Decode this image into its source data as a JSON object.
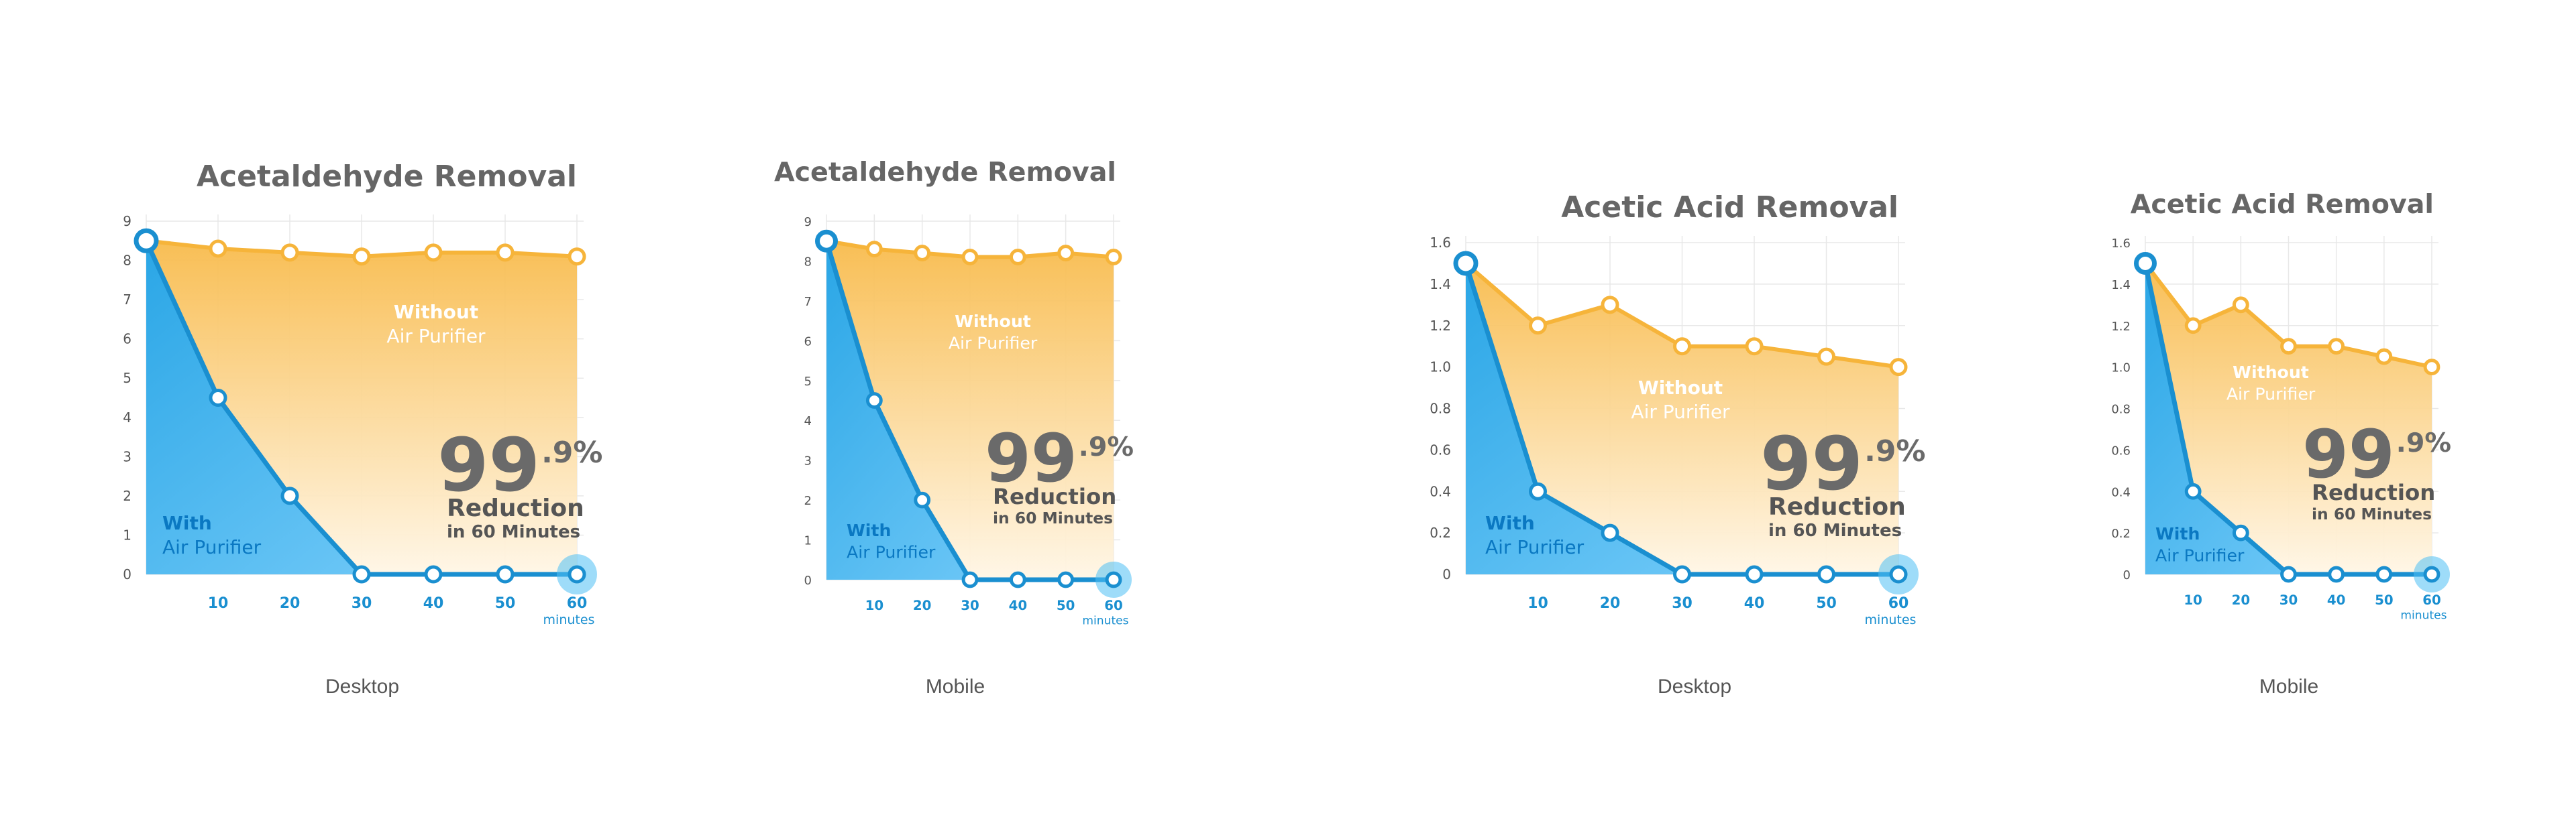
{
  "colors": {
    "with_line": "#1a8fd0",
    "with_fill_top": "#2aa6e6",
    "with_fill_bottom": "#7fd0fb",
    "without_line": "#f6b43a",
    "without_fill_top": "#f8bb4c",
    "without_fill_bottom": "#fff6e6",
    "grid": "#e8e8e8"
  },
  "chart_data": [
    {
      "type": "area",
      "title": "Acetaldehyde Removal",
      "x": [
        0,
        10,
        20,
        30,
        40,
        50,
        60
      ],
      "x_tick_labels": [
        "10",
        "20",
        "30",
        "40",
        "50",
        "60"
      ],
      "x_unit": "minutes",
      "ylim": [
        0,
        9
      ],
      "y_ticks": [
        "0",
        "1",
        "2",
        "3",
        "4",
        "5",
        "6",
        "7",
        "8",
        "9"
      ],
      "grid": true,
      "series": [
        {
          "label_bold": "Without",
          "label_regular": "Air Purifier",
          "values": [
            8.5,
            8.3,
            8.2,
            8.1,
            8.2,
            8.2,
            8.1
          ]
        },
        {
          "label_bold": "With",
          "label_regular": "Air Purifier",
          "values": [
            8.5,
            4.5,
            2.0,
            0,
            0,
            0,
            0
          ]
        }
      ],
      "stat": {
        "value": "99",
        "suffix": ".9%",
        "line1": "Reduction",
        "line2": "in 60 Minutes"
      },
      "caption": "Desktop"
    },
    {
      "type": "area",
      "title": "Acetaldehyde Removal",
      "x": [
        0,
        10,
        20,
        30,
        40,
        50,
        60
      ],
      "x_tick_labels": [
        "10",
        "20",
        "30",
        "40",
        "50",
        "60"
      ],
      "x_unit": "minutes",
      "ylim": [
        0,
        9
      ],
      "y_ticks": [
        "0",
        "1",
        "2",
        "3",
        "4",
        "5",
        "6",
        "7",
        "8",
        "9"
      ],
      "grid": true,
      "series": [
        {
          "label_bold": "Without",
          "label_regular": "Air Purifier",
          "values": [
            8.5,
            8.3,
            8.2,
            8.1,
            8.1,
            8.2,
            8.1
          ]
        },
        {
          "label_bold": "With",
          "label_regular": "Air Purifier",
          "values": [
            8.5,
            4.5,
            2.0,
            0,
            0,
            0,
            0
          ]
        }
      ],
      "stat": {
        "value": "99",
        "suffix": ".9%",
        "line1": "Reduction",
        "line2": "in 60 Minutes"
      },
      "caption": "Mobile"
    },
    {
      "type": "area",
      "title": "Acetic Acid Removal",
      "x": [
        0,
        10,
        20,
        30,
        40,
        50,
        60
      ],
      "x_tick_labels": [
        "10",
        "20",
        "30",
        "40",
        "50",
        "60"
      ],
      "x_unit": "minutes",
      "ylim": [
        0,
        1.6
      ],
      "y_ticks": [
        "0",
        "0.2",
        "0.4",
        "0.6",
        "0.8",
        "1.0",
        "1.2",
        "1.4",
        "1.6"
      ],
      "grid": true,
      "series": [
        {
          "label_bold": "Without",
          "label_regular": "Air Purifier",
          "values": [
            1.5,
            1.2,
            1.3,
            1.1,
            1.1,
            1.05,
            1.0
          ]
        },
        {
          "label_bold": "With",
          "label_regular": "Air Purifier",
          "values": [
            1.5,
            0.4,
            0.2,
            0,
            0,
            0,
            0
          ]
        }
      ],
      "stat": {
        "value": "99",
        "suffix": ".9%",
        "line1": "Reduction",
        "line2": "in 60 Minutes"
      },
      "caption": "Desktop"
    },
    {
      "type": "area",
      "title": "Acetic Acid Removal",
      "x": [
        0,
        10,
        20,
        30,
        40,
        50,
        60
      ],
      "x_tick_labels": [
        "10",
        "20",
        "30",
        "40",
        "50",
        "60"
      ],
      "x_unit": "minutes",
      "ylim": [
        0,
        1.6
      ],
      "y_ticks": [
        "0",
        "0.2",
        "0.4",
        "0.6",
        "0.8",
        "1.0",
        "1.2",
        "1.4",
        "1.6"
      ],
      "grid": true,
      "series": [
        {
          "label_bold": "Without",
          "label_regular": "Air Purifier",
          "values": [
            1.5,
            1.2,
            1.3,
            1.1,
            1.1,
            1.05,
            1.0
          ]
        },
        {
          "label_bold": "With",
          "label_regular": "Air Purifier",
          "values": [
            1.5,
            0.4,
            0.2,
            0,
            0,
            0,
            0
          ]
        }
      ],
      "stat": {
        "value": "99",
        "suffix": ".9%",
        "line1": "Reduction",
        "line2": "in 60 Minutes"
      },
      "caption": "Mobile"
    }
  ]
}
